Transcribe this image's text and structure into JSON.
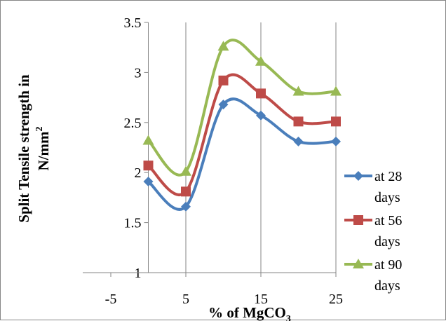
{
  "chart_data": {
    "type": "line",
    "smooth": true,
    "xlabel": {
      "main": "% of MgCO",
      "sub": "3"
    },
    "ylabel": {
      "line1": "Split Tensile strength in",
      "line2_main": "N/mm",
      "line2_sup": "2"
    },
    "x": [
      0,
      5,
      10,
      15,
      20,
      25
    ],
    "xlim": [
      -5,
      25
    ],
    "ylim": [
      1,
      3.5
    ],
    "xticks": [
      -5,
      5,
      15,
      25
    ],
    "xtick_labels": [
      "-5",
      "5",
      "15",
      "25"
    ],
    "yticks": [
      1,
      1.5,
      2,
      2.5,
      3,
      3.5
    ],
    "ytick_labels": [
      "1",
      "1.5",
      "2",
      "2.5",
      "3",
      "3.5"
    ],
    "grid": {
      "vertical": true,
      "horizontal": false
    },
    "legend_position": "right",
    "series": [
      {
        "name_lines": [
          "at 28",
          "days"
        ],
        "color": "#4A7EBB",
        "marker": "diamond",
        "values": [
          1.91,
          1.66,
          2.68,
          2.57,
          2.31,
          2.31
        ]
      },
      {
        "name_lines": [
          "at 56",
          "days"
        ],
        "color": "#BE4B48",
        "marker": "square",
        "values": [
          2.07,
          1.81,
          2.92,
          2.79,
          2.51,
          2.51
        ]
      },
      {
        "name_lines": [
          "at 90",
          "days"
        ],
        "color": "#98B954",
        "marker": "triangle",
        "values": [
          2.32,
          2.01,
          3.26,
          3.11,
          2.81,
          2.81
        ]
      }
    ]
  }
}
